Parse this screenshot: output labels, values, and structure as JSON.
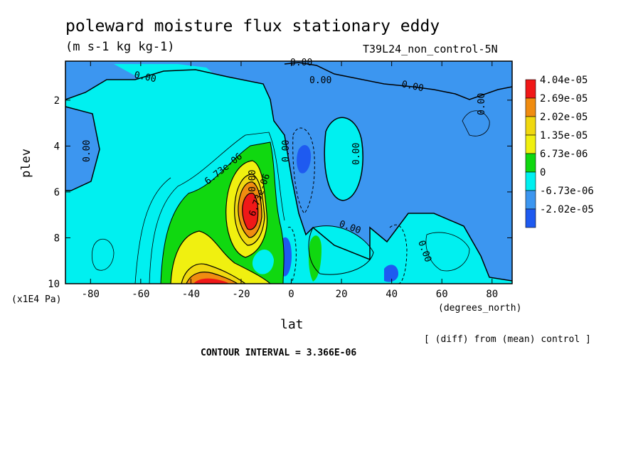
{
  "chart_data": {
    "type": "heatmap",
    "title": "poleward moisture flux stationary eddy",
    "units": "(m s-1 kg kg-1)",
    "run_name": "T39L24_non_control-5N",
    "xlabel": "lat",
    "x_units": "(degrees_north)",
    "ylabel": "plev",
    "y_units": "(x1E4 Pa)",
    "x_ticks": [
      "-80",
      "-60",
      "-40",
      "-20",
      "0",
      "20",
      "40",
      "60",
      "80"
    ],
    "y_ticks": [
      "2",
      "4",
      "6",
      "8",
      "10"
    ],
    "xlim": [
      -90,
      88
    ],
    "ylim": [
      10,
      0.3
    ],
    "note": "[ (diff) from (mean) control ]",
    "contour_interval": "CONTOUR INTERVAL = 3.366E-06",
    "legend": {
      "labels": [
        "4.04e-05",
        "2.69e-05",
        "2.02e-05",
        "1.35e-05",
        "6.73e-06",
        "0",
        "-6.73e-06",
        "-2.02e-05"
      ],
      "colors": [
        "#f01818",
        "#f08c10",
        "#f0d810",
        "#f0f010",
        "#10d810",
        "#00f0f0",
        "#3c96f0",
        "#1e5af0"
      ]
    },
    "contour_labels": [
      "0.00",
      "0.00",
      "0.00",
      "0.00",
      "0.00",
      "0.00",
      "0.00",
      "0.00",
      "0.00",
      "0.00",
      "0.00",
      "6.73e-06",
      "6.73e-06"
    ],
    "colors": {
      "positive_low": "#00f0f0",
      "negative": "#3c96f0",
      "negative_strong": "#1e5af0",
      "green": "#10d810",
      "yellow": "#f0f010",
      "gold": "#f0d810",
      "orange": "#f08c10",
      "red": "#f01818"
    }
  }
}
